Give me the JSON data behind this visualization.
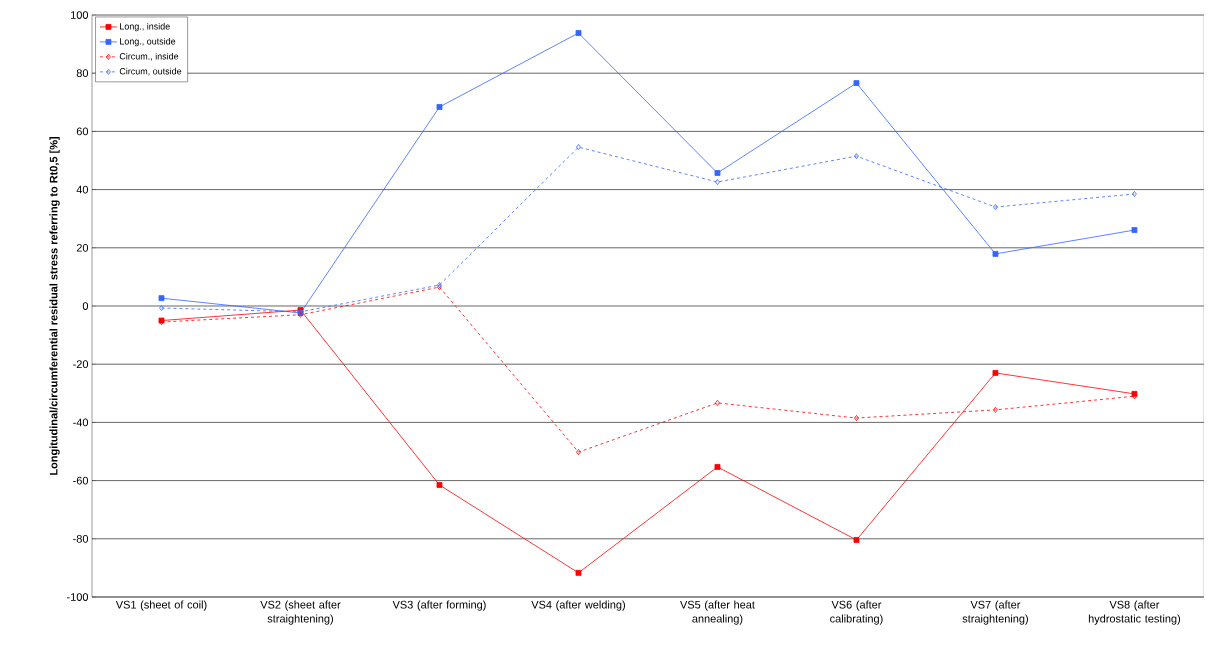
{
  "chart_data": {
    "type": "line",
    "ylabel": "Longitudinal/circumferential residual stress referring to Rt0,5 [%]",
    "categories": [
      "VS1 (sheet of coil)",
      "VS2 (sheet after straightening)",
      "VS3 (after forming)",
      "VS4 (after welding)",
      "VS5 (after heat annealing)",
      "VS6 (after calibrating)",
      "VS7 (after straightening)",
      "VS8 (after hydrostatic testing)"
    ],
    "series": [
      {
        "name": "Long., inside",
        "color": "#ff0000",
        "marker": "square",
        "line_style": "solid",
        "values": [
          -5,
          -1.4,
          -61.5,
          -91.7,
          -55.3,
          -80.4,
          -23,
          -30.2
        ]
      },
      {
        "name": "Long., outside",
        "color": "#3366ff",
        "marker": "square",
        "line_style": "solid",
        "values": [
          2.7,
          -2.4,
          68.4,
          93.8,
          45.7,
          76.6,
          17.9,
          26.1
        ]
      },
      {
        "name": "Circum., inside",
        "color": "#ff0000",
        "marker": "diamond",
        "line_style": "dashed",
        "values": [
          -5.5,
          -3,
          6.5,
          -50.2,
          -33.3,
          -38.5,
          -35.7,
          -31
        ]
      },
      {
        "name": "Circum, outside",
        "color": "#3366ff",
        "marker": "diamond",
        "line_style": "dashed",
        "values": [
          -0.7,
          -2,
          7.2,
          54.6,
          42.6,
          51.5,
          34,
          38.5
        ]
      }
    ],
    "ylim": [
      -100,
      100
    ],
    "yticks": [
      -100,
      -80,
      -60,
      -40,
      -20,
      0,
      20,
      40,
      60,
      80,
      100
    ],
    "grid": "y",
    "legend": "top left"
  }
}
